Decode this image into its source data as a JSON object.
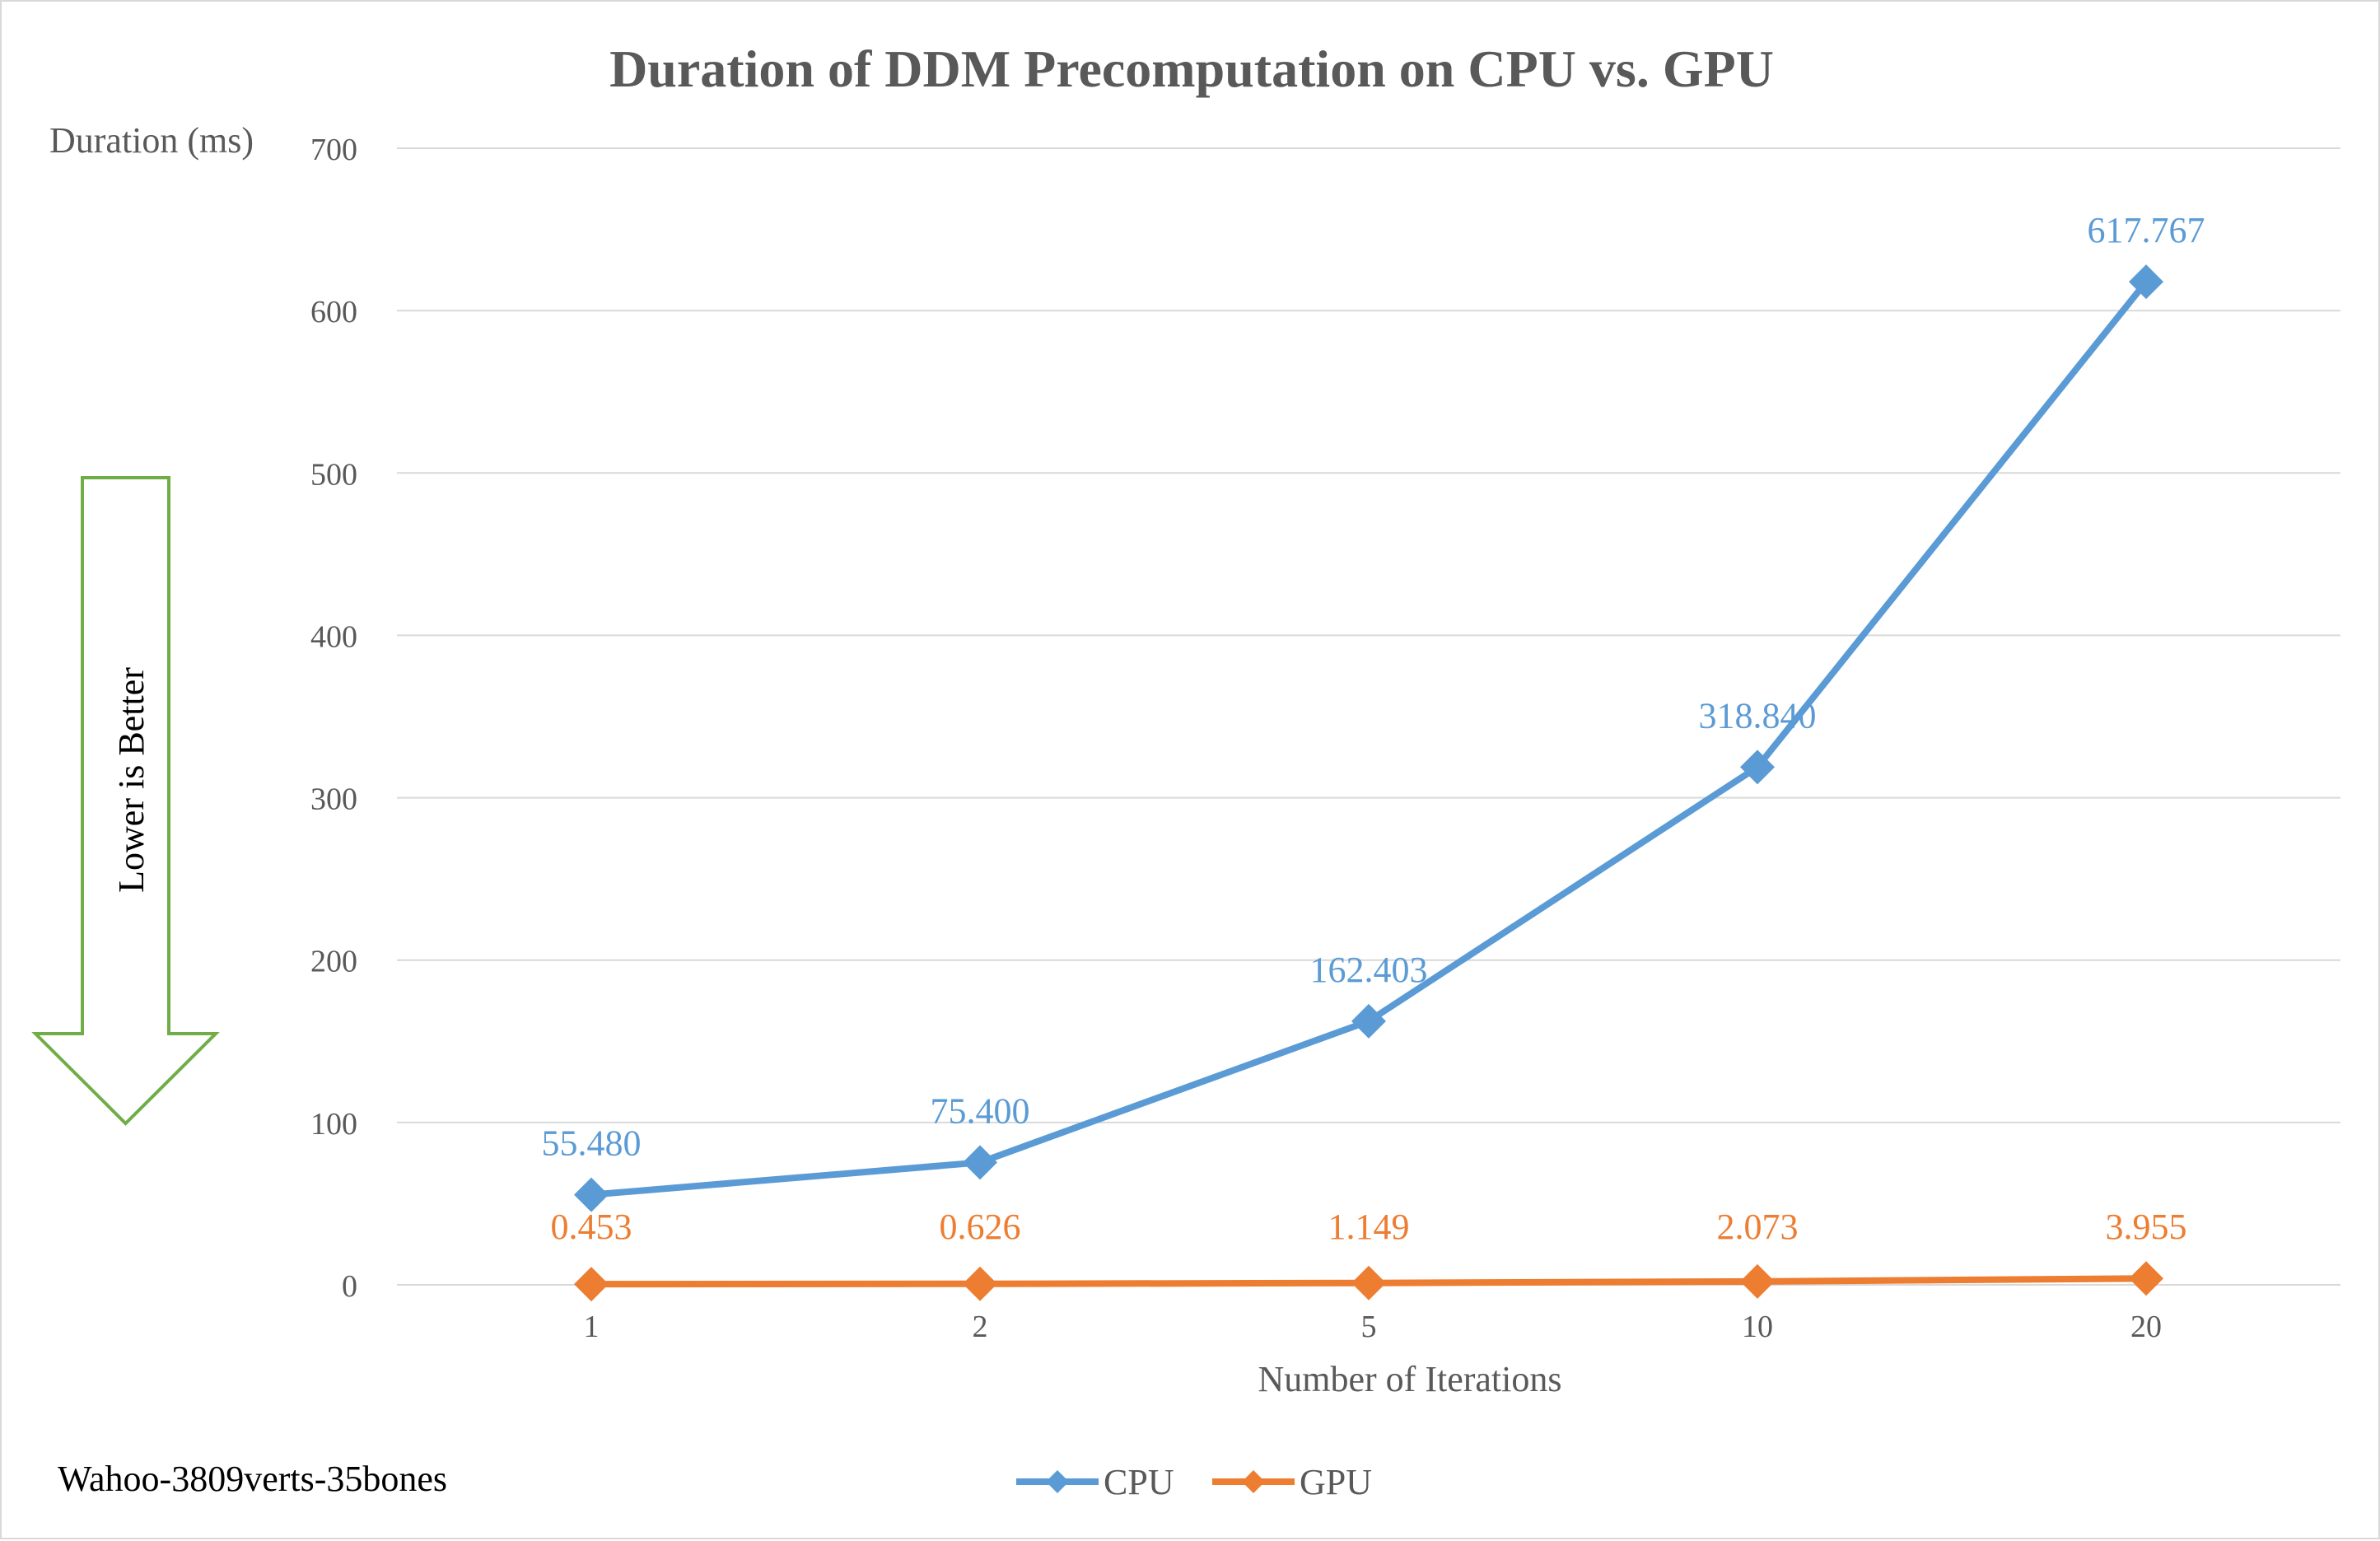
{
  "chart_data": {
    "type": "line",
    "title": "Duration of DDM Precomputation on CPU vs. GPU",
    "xlabel": "Number of Iterations",
    "ylabel": "Duration (ms)",
    "categories": [
      "1",
      "2",
      "5",
      "10",
      "20"
    ],
    "ylim": [
      0,
      700
    ],
    "yticks": [
      0,
      100,
      200,
      300,
      400,
      500,
      600,
      700
    ],
    "grid": true,
    "legend_position": "bottom",
    "series": [
      {
        "name": "CPU",
        "values": [
          55.48,
          75.4,
          162.403,
          318.84,
          617.767
        ],
        "labels": [
          "55.480",
          "75.400",
          "162.403",
          "318.840",
          "617.767"
        ],
        "color": "#5b9bd5"
      },
      {
        "name": "GPU",
        "values": [
          0.453,
          0.626,
          1.149,
          2.073,
          3.955
        ],
        "labels": [
          "0.453",
          "0.626",
          "1.149",
          "2.073",
          "3.955"
        ],
        "color": "#ed7d31"
      }
    ],
    "annotations": {
      "arrow_text": "Lower is Better",
      "arrow_color": "#70ad47",
      "footnote": "Wahoo-3809verts-35bones"
    }
  }
}
